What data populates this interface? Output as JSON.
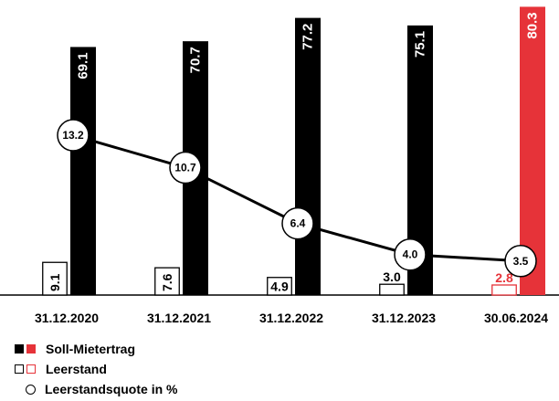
{
  "chart_data": {
    "type": "bar",
    "categories": [
      "31.12.2020",
      "31.12.2021",
      "31.12.2022",
      "31.12.2023",
      "30.06.2024"
    ],
    "series": [
      {
        "name": "Soll-Mietertrag",
        "values": [
          69.1,
          70.7,
          77.2,
          75.1,
          80.3
        ],
        "value_labels": [
          "69.1",
          "70.7",
          "77.2",
          "75.1",
          "80.3"
        ]
      },
      {
        "name": "Leerstand",
        "values": [
          9.1,
          7.6,
          4.9,
          3.0,
          2.8
        ],
        "value_labels": [
          "9.1",
          "7.6",
          "4.9",
          "3.0",
          "2.8"
        ]
      },
      {
        "name": "Leerstandsquote in %",
        "type": "line",
        "values": [
          13.2,
          10.7,
          6.4,
          4.0,
          3.5
        ],
        "value_labels": [
          "13.2",
          "10.7",
          "6.4",
          "4.0",
          "3.5"
        ]
      }
    ],
    "colors": {
      "default": "#000000",
      "highlight": "#e63339"
    },
    "highlight_category": "30.06.2024",
    "legend_position": "bottom-left",
    "grid": false
  },
  "legend": {
    "items": [
      {
        "label": "Soll-Mietertrag"
      },
      {
        "label": "Leerstand"
      },
      {
        "label": "Leerstandsquote in %"
      }
    ]
  }
}
